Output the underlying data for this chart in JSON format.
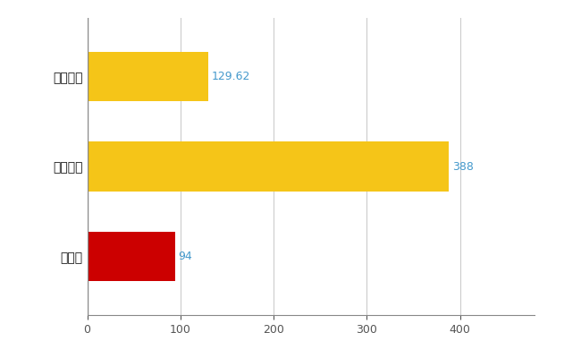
{
  "categories": [
    "全国平均",
    "全国最大",
    "秋田県"
  ],
  "values": [
    129.62,
    388,
    94
  ],
  "bar_colors": [
    "#F5C518",
    "#F5C518",
    "#CC0000"
  ],
  "value_labels": [
    "129.62",
    "388",
    "94"
  ],
  "value_label_color": "#4499CC",
  "xlim": [
    0,
    480
  ],
  "xticks": [
    0,
    100,
    200,
    300,
    400
  ],
  "grid_color": "#CCCCCC",
  "background_color": "#FFFFFF",
  "bar_height": 0.55
}
